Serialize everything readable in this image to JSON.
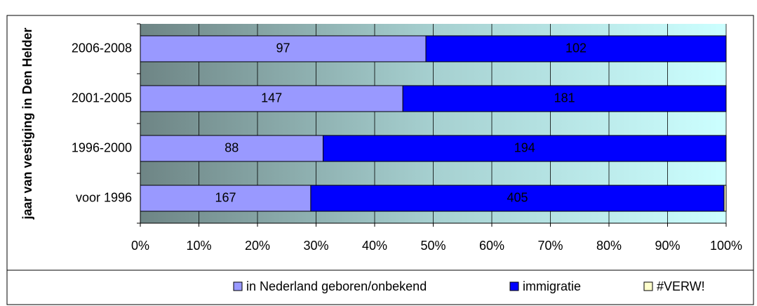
{
  "chart_data": {
    "type": "bar",
    "orientation": "horizontal",
    "stacked": "percent",
    "y_label": "jaar van vestiging in Den Helder",
    "categories": [
      "2006-2008",
      "2001-2005",
      "1996-2000",
      "voor 1996"
    ],
    "series": [
      {
        "name": "in Nederland geboren/onbekend",
        "color": "#9999ff",
        "values": [
          97,
          147,
          88,
          167
        ]
      },
      {
        "name": "immigratie",
        "color": "#0000ff",
        "values": [
          102,
          181,
          194,
          405
        ]
      },
      {
        "name": "#VERW!",
        "color": "#ffffcc",
        "values": [
          0,
          0,
          0,
          2
        ]
      }
    ],
    "xlim": [
      0,
      100
    ],
    "xticks": [
      {
        "value": 0,
        "label": "0%"
      },
      {
        "value": 10,
        "label": "10%"
      },
      {
        "value": 20,
        "label": "20%"
      },
      {
        "value": 30,
        "label": "30%"
      },
      {
        "value": 40,
        "label": "40%"
      },
      {
        "value": 50,
        "label": "50%"
      },
      {
        "value": 60,
        "label": "60%"
      },
      {
        "value": 70,
        "label": "70%"
      },
      {
        "value": 80,
        "label": "80%"
      },
      {
        "value": 90,
        "label": "90%"
      },
      {
        "value": 100,
        "label": "100%"
      }
    ],
    "grid": true,
    "legend": "bottom"
  }
}
